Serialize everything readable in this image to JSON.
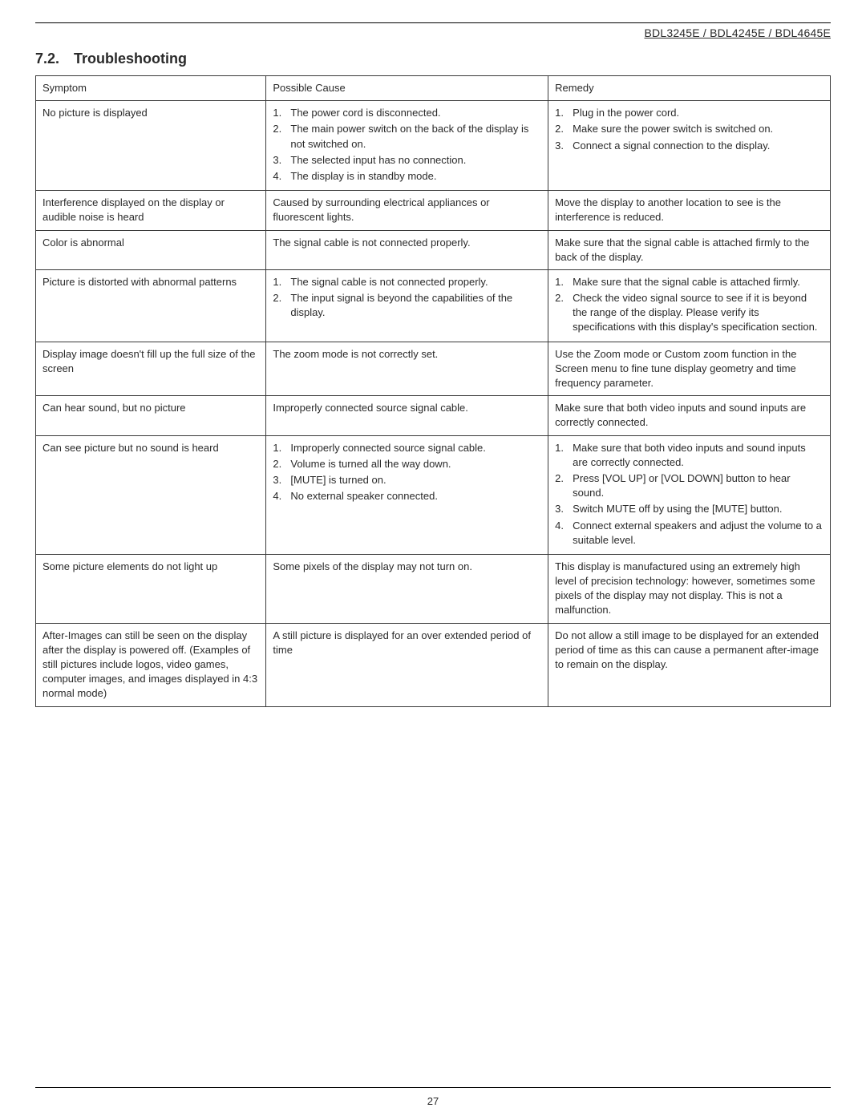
{
  "header": {
    "models": "BDL3245E / BDL4245E / BDL4645E"
  },
  "section": {
    "number": "7.2.",
    "title": "Troubleshooting"
  },
  "table": {
    "headers": {
      "c1": "Symptom",
      "c2": "Possible Cause",
      "c3": "Remedy"
    },
    "rows": [
      {
        "symptom": "No picture is displayed",
        "cause_list": [
          "The power cord is disconnected.",
          "The main power switch on the back of the display is not switched on.",
          "The selected input has no connection.",
          "The display is in standby mode."
        ],
        "remedy_list": [
          "Plug in the power cord.",
          "Make sure the power switch is switched on.",
          "Connect a signal connection to the display."
        ]
      },
      {
        "symptom": "Interference displayed on the display or audible noise is heard",
        "cause": "Caused by surrounding electrical appliances or fluorescent lights.",
        "remedy": "Move the display to another location to see is the interference is reduced."
      },
      {
        "symptom": "Color is abnormal",
        "cause": "The signal cable is not connected properly.",
        "remedy": "Make sure that the signal cable is attached firmly to the back of the display."
      },
      {
        "symptom": "Picture is distorted with abnormal patterns",
        "cause_list": [
          "The signal cable is not connected properly.",
          "The input signal is beyond the capabilities of the display."
        ],
        "remedy_list": [
          "Make sure that the signal cable is attached firmly.",
          "Check the video signal source to see if it is beyond the range of the display. Please verify its specifications with this display's specification section."
        ]
      },
      {
        "symptom": "Display image doesn't fill up the full size of the screen",
        "cause": "The zoom mode is not correctly set.",
        "remedy": "Use the Zoom mode or Custom zoom function in the Screen menu to fine tune display geometry and time frequency parameter."
      },
      {
        "symptom": "Can hear sound, but no picture",
        "cause": "Improperly connected source signal cable.",
        "remedy": "Make sure that both video inputs and sound inputs are correctly connected."
      },
      {
        "symptom": "Can see picture but no sound is heard",
        "cause_list": [
          "Improperly connected source signal cable.",
          "Volume is turned all the way down.",
          "[MUTE] is turned on.",
          "No external speaker connected."
        ],
        "remedy_list": [
          "Make sure that both video inputs and sound inputs are correctly connected.",
          "Press [VOL UP] or [VOL DOWN] button to hear sound.",
          "Switch MUTE off by using the [MUTE] button.",
          "Connect external speakers and adjust the volume to a suitable level."
        ]
      },
      {
        "symptom": "Some picture elements do not light up",
        "cause": "Some pixels of the display may not turn on.",
        "remedy": "This display is manufactured using an extremely high level of precision technology: however, sometimes some pixels of the display may not display. This is not a malfunction."
      },
      {
        "symptom": "After-Images can still be seen on the display after the display is powered off. (Examples of still pictures include logos, video games, computer images, and images displayed in 4:3 normal mode)",
        "cause": "A still picture is displayed for an over extended period of time",
        "remedy": "Do not allow a still image to be displayed for an extended period of time as this can cause a permanent after-image to remain on the display."
      }
    ]
  },
  "page_number": "27"
}
